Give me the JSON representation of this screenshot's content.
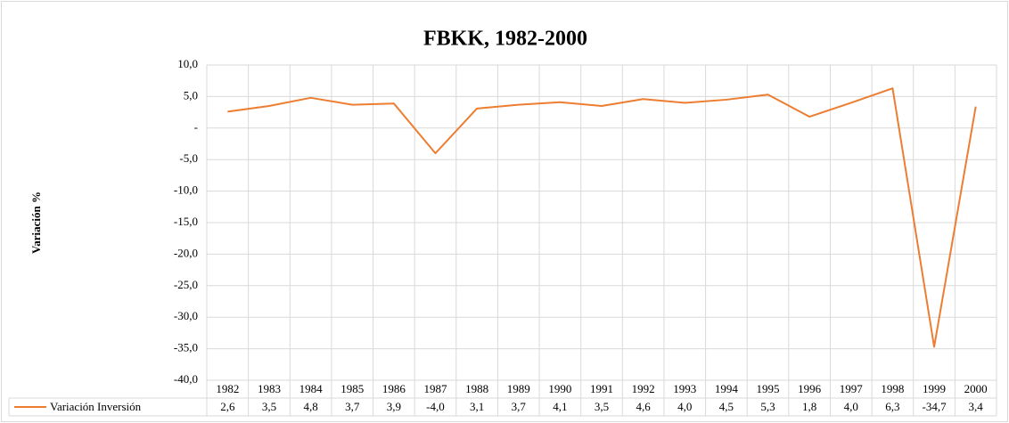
{
  "chart_data": {
    "type": "line",
    "title": "FBKK, 1982-2000",
    "y_label": "Variación %",
    "categories": [
      "1982",
      "1983",
      "1984",
      "1985",
      "1986",
      "1987",
      "1988",
      "1989",
      "1990",
      "1991",
      "1992",
      "1993",
      "1994",
      "1995",
      "1996",
      "1997",
      "1998",
      "1999",
      "2000"
    ],
    "series": [
      {
        "name": "Variación Inversión",
        "color": "#ed7d31",
        "values": [
          2.6,
          3.5,
          4.8,
          3.7,
          3.9,
          -4.0,
          3.1,
          3.7,
          4.1,
          3.5,
          4.6,
          4.0,
          4.5,
          5.3,
          1.8,
          4.0,
          6.3,
          -34.7,
          3.4
        ],
        "value_labels": [
          "2,6",
          "3,5",
          "4,8",
          "3,7",
          "3,9",
          "-4,0",
          "3,1",
          "3,7",
          "4,1",
          "3,5",
          "4,6",
          "4,0",
          "4,5",
          "5,3",
          "1,8",
          "4,0",
          "6,3",
          "-34,7",
          "3,4"
        ]
      }
    ],
    "ylim": [
      -40,
      10
    ],
    "yticks": [
      {
        "value": 10,
        "label": "10,0"
      },
      {
        "value": 5,
        "label": "5,0"
      },
      {
        "value": 0,
        "label": "-"
      },
      {
        "value": -5,
        "label": "-5,0"
      },
      {
        "value": -10,
        "label": "-10,0"
      },
      {
        "value": -15,
        "label": "-15,0"
      },
      {
        "value": -20,
        "label": "-20,0"
      },
      {
        "value": -25,
        "label": "-25,0"
      },
      {
        "value": -30,
        "label": "-30,0"
      },
      {
        "value": -35,
        "label": "-35,0"
      },
      {
        "value": -40,
        "label": "-40,0"
      }
    ],
    "grid": true,
    "data_table": true
  }
}
